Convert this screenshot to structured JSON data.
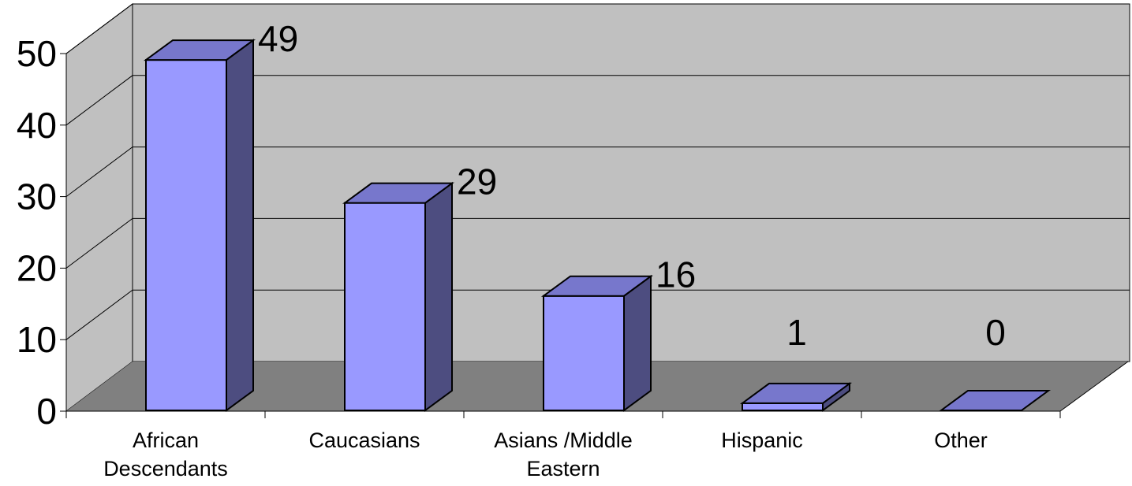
{
  "chart_data": {
    "type": "bar",
    "style": "3d-column",
    "categories": [
      [
        "African",
        "Descendants"
      ],
      [
        "Caucasians"
      ],
      [
        "Asians  /Middle",
        "Eastern"
      ],
      [
        "Hispanic"
      ],
      [
        "Other"
      ]
    ],
    "values": [
      49,
      29,
      16,
      1,
      0
    ],
    "data_labels": [
      "49",
      "29",
      "16",
      "1",
      "0"
    ],
    "y_ticks": [
      "0",
      "10",
      "20",
      "30",
      "40",
      "50"
    ],
    "ylim": [
      0,
      50
    ],
    "grid": true,
    "legend": false
  },
  "colors": {
    "bar_front": "#9999ff",
    "bar_top": "#7777cc",
    "bar_side": "#4d4d80",
    "back_wall": "#c0c0c0",
    "side_wall": "#c0c0c0",
    "floor": "#808080",
    "gridline": "#000000",
    "outline": "#000000"
  }
}
